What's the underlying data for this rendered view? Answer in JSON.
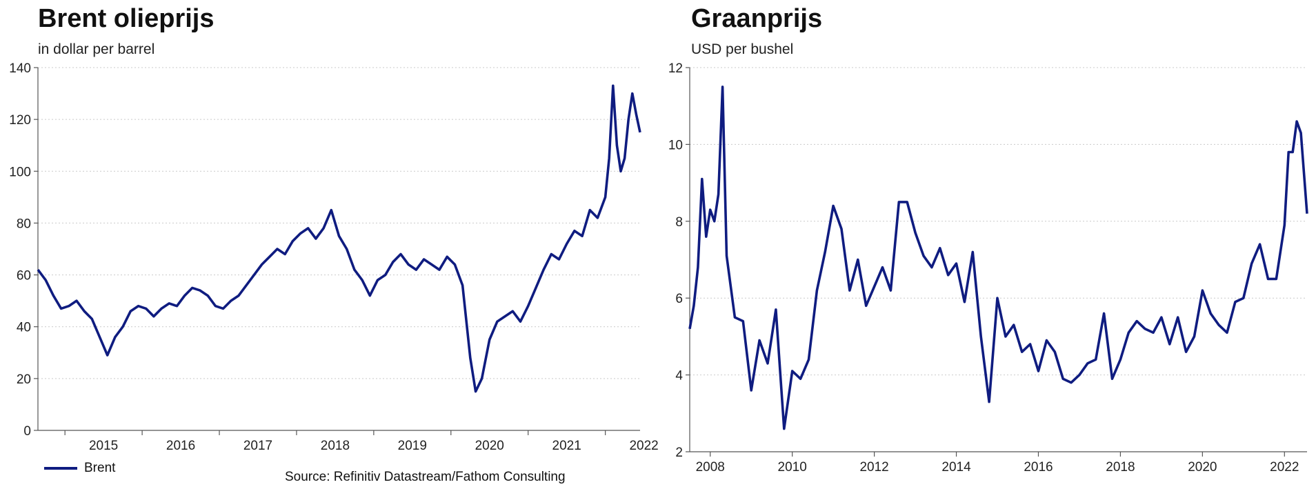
{
  "source": "Source: Refinitiv Datastream/Fathom Consulting",
  "colors": {
    "series": "#0f1c80",
    "grid": "#c9c9c9"
  },
  "chart_data": [
    {
      "type": "line",
      "title": "Brent olieprijs",
      "subtitle": "in dollar per barrel",
      "legend": [
        "Brent"
      ],
      "legend_position": "bottom-left",
      "grid": true,
      "ylim": [
        0,
        140
      ],
      "yticks": [
        "0",
        "20",
        "40",
        "60",
        "80",
        "100",
        "120",
        "140"
      ],
      "xticks": [
        "2015",
        "2016",
        "2017",
        "2018",
        "2019",
        "2020",
        "2021",
        "2022"
      ],
      "xlim": [
        2014.65,
        2022.45
      ],
      "series": [
        {
          "name": "Brent",
          "x": [
            2014.65,
            2014.75,
            2014.85,
            2014.95,
            2015.05,
            2015.15,
            2015.25,
            2015.35,
            2015.45,
            2015.55,
            2015.65,
            2015.75,
            2015.85,
            2015.95,
            2016.05,
            2016.15,
            2016.25,
            2016.35,
            2016.45,
            2016.55,
            2016.65,
            2016.75,
            2016.85,
            2016.95,
            2017.05,
            2017.15,
            2017.25,
            2017.35,
            2017.45,
            2017.55,
            2017.65,
            2017.75,
            2017.85,
            2017.95,
            2018.05,
            2018.15,
            2018.25,
            2018.35,
            2018.45,
            2018.55,
            2018.65,
            2018.75,
            2018.85,
            2018.95,
            2019.05,
            2019.15,
            2019.25,
            2019.35,
            2019.45,
            2019.55,
            2019.65,
            2019.75,
            2019.85,
            2019.95,
            2020.05,
            2020.15,
            2020.25,
            2020.32,
            2020.4,
            2020.5,
            2020.6,
            2020.7,
            2020.8,
            2020.9,
            2021.0,
            2021.1,
            2021.2,
            2021.3,
            2021.4,
            2021.5,
            2021.6,
            2021.7,
            2021.8,
            2021.9,
            2022.0,
            2022.05,
            2022.1,
            2022.15,
            2022.2,
            2022.25,
            2022.3,
            2022.35,
            2022.4,
            2022.45
          ],
          "values": [
            62,
            58,
            52,
            47,
            48,
            50,
            46,
            43,
            36,
            29,
            36,
            40,
            46,
            48,
            47,
            44,
            47,
            49,
            48,
            52,
            55,
            54,
            52,
            48,
            47,
            50,
            52,
            56,
            60,
            64,
            67,
            70,
            68,
            73,
            76,
            78,
            74,
            78,
            85,
            75,
            70,
            62,
            58,
            52,
            58,
            60,
            65,
            68,
            64,
            62,
            66,
            64,
            62,
            67,
            64,
            56,
            28,
            15,
            20,
            35,
            42,
            44,
            46,
            42,
            48,
            55,
            62,
            68,
            66,
            72,
            77,
            75,
            85,
            82,
            90,
            105,
            133,
            110,
            100,
            105,
            120,
            130,
            122,
            115
          ]
        }
      ]
    },
    {
      "type": "line",
      "title": "Graanprijs",
      "subtitle": "USD per bushel",
      "grid": true,
      "ylim": [
        2,
        12
      ],
      "yticks": [
        "2",
        "4",
        "6",
        "8",
        "10",
        "12"
      ],
      "xticks": [
        "2008",
        "2010",
        "2012",
        "2014",
        "2016",
        "2018",
        "2020",
        "2022"
      ],
      "xlim": [
        2007.5,
        2022.55
      ],
      "series": [
        {
          "name": "",
          "x": [
            2007.5,
            2007.6,
            2007.7,
            2007.8,
            2007.9,
            2008.0,
            2008.1,
            2008.2,
            2008.3,
            2008.4,
            2008.6,
            2008.8,
            2009.0,
            2009.2,
            2009.4,
            2009.6,
            2009.8,
            2010.0,
            2010.2,
            2010.4,
            2010.6,
            2010.8,
            2011.0,
            2011.2,
            2011.4,
            2011.6,
            2011.8,
            2012.0,
            2012.2,
            2012.4,
            2012.6,
            2012.8,
            2013.0,
            2013.2,
            2013.4,
            2013.6,
            2013.8,
            2014.0,
            2014.2,
            2014.4,
            2014.6,
            2014.8,
            2015.0,
            2015.2,
            2015.4,
            2015.6,
            2015.8,
            2016.0,
            2016.2,
            2016.4,
            2016.6,
            2016.8,
            2017.0,
            2017.2,
            2017.4,
            2017.6,
            2017.8,
            2018.0,
            2018.2,
            2018.4,
            2018.6,
            2018.8,
            2019.0,
            2019.2,
            2019.4,
            2019.6,
            2019.8,
            2020.0,
            2020.2,
            2020.4,
            2020.6,
            2020.8,
            2021.0,
            2021.2,
            2021.4,
            2021.6,
            2021.8,
            2022.0,
            2022.1,
            2022.2,
            2022.3,
            2022.4,
            2022.55
          ],
          "values": [
            5.2,
            5.8,
            6.8,
            9.1,
            7.6,
            8.3,
            8.0,
            8.7,
            11.5,
            7.1,
            5.5,
            5.4,
            3.6,
            4.9,
            4.3,
            5.7,
            2.6,
            4.1,
            3.9,
            4.4,
            6.2,
            7.2,
            8.4,
            7.8,
            6.2,
            7.0,
            5.8,
            6.3,
            6.8,
            6.2,
            8.5,
            8.5,
            7.7,
            7.1,
            6.8,
            7.3,
            6.6,
            6.9,
            5.9,
            7.2,
            5.0,
            3.3,
            6.0,
            5.0,
            5.3,
            4.6,
            4.8,
            4.1,
            4.9,
            4.6,
            3.9,
            3.8,
            4.0,
            4.3,
            4.4,
            5.6,
            3.9,
            4.4,
            5.1,
            5.4,
            5.2,
            5.1,
            5.5,
            4.8,
            5.5,
            4.6,
            5.0,
            6.2,
            5.6,
            5.3,
            5.1,
            5.9,
            6.0,
            6.9,
            7.4,
            6.5,
            6.5,
            7.9,
            9.8,
            9.8,
            10.6,
            10.3,
            8.2
          ]
        }
      ]
    }
  ]
}
